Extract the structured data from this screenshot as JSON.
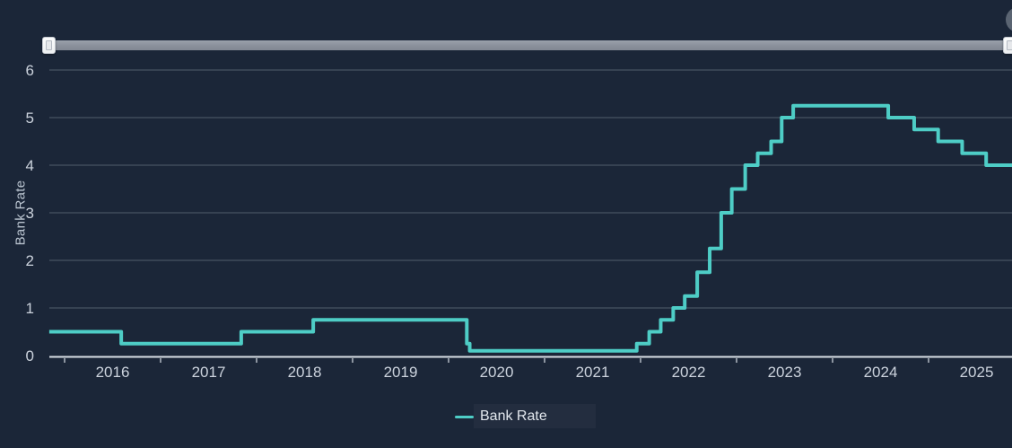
{
  "app": {
    "background_color": "#1b2638"
  },
  "range_slider": {
    "track_color": "#8a909b",
    "handle_color": "#f2f3f5",
    "left_handle_position": "min",
    "right_handle_position": "max"
  },
  "context_button": {
    "color": "#9aa1ac"
  },
  "chart_data": {
    "type": "line",
    "step": "after",
    "title": "",
    "xlabel": "",
    "ylabel": "Bank Rate",
    "x_range": [
      2015.84,
      2025.87
    ],
    "ylim": [
      0,
      6
    ],
    "x_ticks": [
      2016,
      2017,
      2018,
      2019,
      2020,
      2021,
      2022,
      2023,
      2024,
      2025
    ],
    "y_ticks": [
      0,
      1,
      2,
      3,
      4,
      5,
      6
    ],
    "grid": true,
    "colors": {
      "background": "#1b2638",
      "grid": "#515d6d",
      "axis": "#d8dee5",
      "tick_label": "#ccd3dd"
    },
    "legend": {
      "position": "bottom",
      "items": [
        {
          "label": "Bank Rate",
          "color": "#4ecdc6"
        }
      ]
    },
    "series": [
      {
        "name": "Bank Rate",
        "color": "#4ecdc6",
        "points": [
          {
            "x": 2015.84,
            "y": 0.5
          },
          {
            "x": 2016.59,
            "y": 0.25
          },
          {
            "x": 2017.84,
            "y": 0.5
          },
          {
            "x": 2018.59,
            "y": 0.75
          },
          {
            "x": 2020.19,
            "y": 0.25
          },
          {
            "x": 2020.22,
            "y": 0.1
          },
          {
            "x": 2021.96,
            "y": 0.25
          },
          {
            "x": 2022.09,
            "y": 0.5
          },
          {
            "x": 2022.21,
            "y": 0.75
          },
          {
            "x": 2022.34,
            "y": 1.0
          },
          {
            "x": 2022.46,
            "y": 1.25
          },
          {
            "x": 2022.59,
            "y": 1.75
          },
          {
            "x": 2022.72,
            "y": 2.25
          },
          {
            "x": 2022.84,
            "y": 3.0
          },
          {
            "x": 2022.95,
            "y": 3.5
          },
          {
            "x": 2023.09,
            "y": 4.0
          },
          {
            "x": 2023.22,
            "y": 4.25
          },
          {
            "x": 2023.36,
            "y": 4.5
          },
          {
            "x": 2023.47,
            "y": 5.0
          },
          {
            "x": 2023.59,
            "y": 5.25
          },
          {
            "x": 2024.58,
            "y": 5.0
          },
          {
            "x": 2024.85,
            "y": 4.75
          },
          {
            "x": 2025.1,
            "y": 4.5
          },
          {
            "x": 2025.35,
            "y": 4.25
          },
          {
            "x": 2025.6,
            "y": 4.0
          },
          {
            "x": 2025.87,
            "y": 4.0
          }
        ]
      }
    ]
  }
}
